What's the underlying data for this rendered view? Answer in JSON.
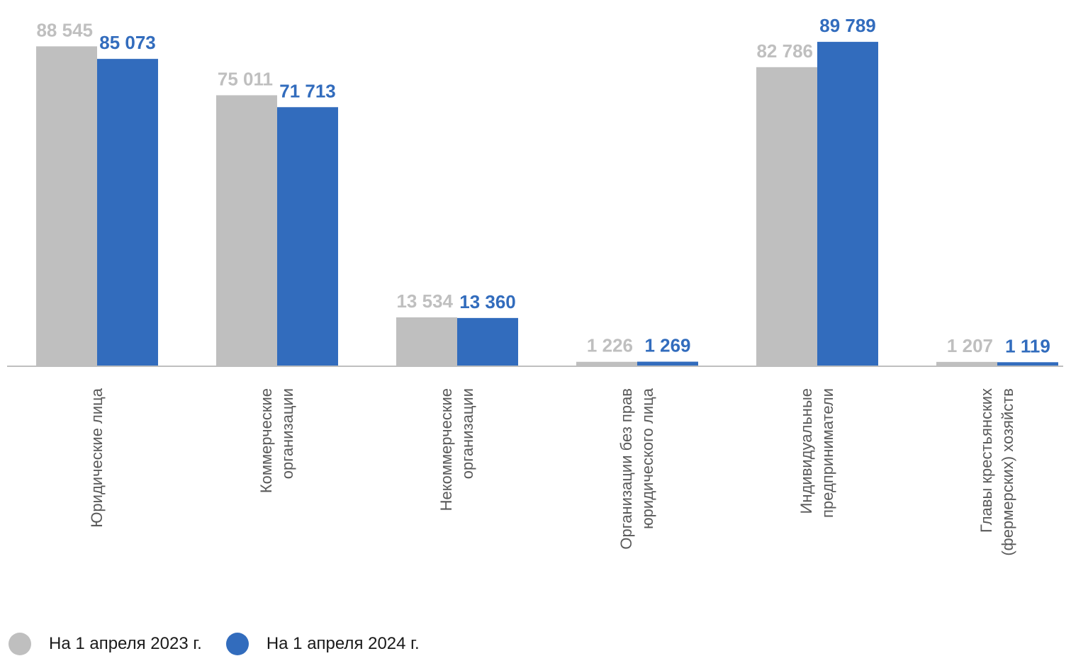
{
  "chart_data": {
    "type": "bar",
    "categories": [
      [
        "Юридические лица"
      ],
      [
        "Коммерческие",
        "организации"
      ],
      [
        "Некоммерческие",
        "организации"
      ],
      [
        "Организации без прав",
        "юридического лица"
      ],
      [
        "Индивидуальные",
        "предприниматели"
      ],
      [
        "Главы крестьянских",
        "(фермерских) хозяйств"
      ]
    ],
    "series": [
      {
        "name": "На 1 апреля 2023 г.",
        "color": "#bfbfbf",
        "values": [
          88545,
          75011,
          13534,
          1226,
          82786,
          1207
        ],
        "labels": [
          "88 545",
          "75 011",
          "13 534",
          "1 226",
          "82 786",
          "1 207"
        ]
      },
      {
        "name": "На 1 апреля 2024 г.",
        "color": "#326cbd",
        "values": [
          85073,
          71713,
          13360,
          1269,
          89789,
          1119
        ],
        "labels": [
          "85 073",
          "71 713",
          "13 360",
          "1 269",
          "89 789",
          "1 119"
        ]
      }
    ],
    "ylim": [
      0,
      100000
    ],
    "grid": false,
    "legend_position": "bottom-left"
  }
}
